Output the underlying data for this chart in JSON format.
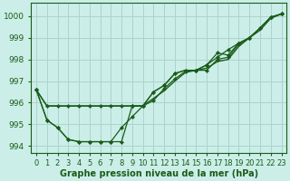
{
  "bg_color": "#cceee8",
  "grid_color": "#aad4cc",
  "line_color": "#1a5c1a",
  "xlabel": "Graphe pression niveau de la mer (hPa)",
  "xlabel_fontsize": 7.0,
  "ylabel_fontsize": 6.5,
  "tick_fontsize": 6.0,
  "xlim": [
    -0.5,
    23.5
  ],
  "ylim": [
    993.7,
    1000.6
  ],
  "yticks": [
    994,
    995,
    996,
    997,
    998,
    999,
    1000
  ],
  "xticks": [
    0,
    1,
    2,
    3,
    4,
    5,
    6,
    7,
    8,
    9,
    10,
    11,
    12,
    13,
    14,
    15,
    16,
    17,
    18,
    19,
    20,
    21,
    22,
    23
  ],
  "series": [
    {
      "y": [
        996.6,
        995.85,
        995.85,
        995.85,
        995.85,
        995.85,
        995.85,
        995.85,
        995.85,
        995.85,
        995.85,
        996.2,
        996.55,
        997.0,
        997.4,
        997.5,
        997.6,
        997.9,
        998.0,
        998.6,
        999.0,
        999.35,
        999.9,
        1000.1
      ],
      "marker": false,
      "lw": 1.0
    },
    {
      "y": [
        996.6,
        995.85,
        995.85,
        995.85,
        995.85,
        995.85,
        995.85,
        995.85,
        995.85,
        995.85,
        995.85,
        996.5,
        996.8,
        997.35,
        997.5,
        997.5,
        997.5,
        998.0,
        998.1,
        998.7,
        999.0,
        999.45,
        999.95,
        1000.1
      ],
      "marker": true,
      "lw": 0.9
    },
    {
      "y": [
        996.6,
        995.2,
        994.85,
        994.3,
        994.2,
        994.2,
        994.2,
        994.2,
        994.85,
        995.35,
        995.85,
        996.5,
        996.8,
        997.35,
        997.5,
        997.5,
        997.75,
        998.3,
        998.2,
        998.75,
        999.0,
        999.45,
        999.95,
        1000.1
      ],
      "marker": true,
      "lw": 0.9
    },
    {
      "y": [
        996.6,
        995.2,
        994.85,
        994.3,
        994.2,
        994.2,
        994.2,
        994.2,
        994.2,
        995.85,
        995.85,
        996.1,
        996.65,
        997.1,
        997.45,
        997.5,
        997.75,
        998.1,
        998.45,
        998.75,
        999.0,
        999.45,
        999.95,
        1000.1
      ],
      "marker": true,
      "lw": 0.9
    }
  ],
  "marker_style": "D",
  "markersize": 2.2
}
